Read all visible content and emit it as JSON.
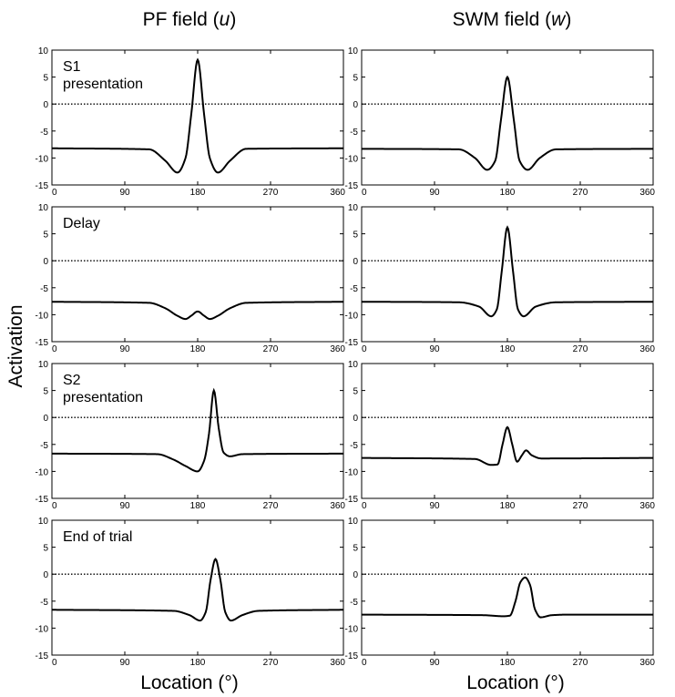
{
  "figure": {
    "ylabel": "Activation",
    "xlabel": "Location (°)",
    "columns": [
      {
        "title_main": "PF field (",
        "title_var": "u",
        "title_end": ")"
      },
      {
        "title_main": "SWM field (",
        "title_var": "w",
        "title_end": ")"
      }
    ]
  },
  "chart_data": [
    {
      "type": "line",
      "panel": "S1 presentation",
      "column": "PF field (u)",
      "label": [
        "S1",
        "presentation"
      ],
      "xlim": [
        0,
        360
      ],
      "ylim": [
        -15,
        10
      ],
      "xticks": [
        0,
        90,
        180,
        270,
        360
      ],
      "yticks": [
        10,
        5,
        0,
        -5,
        -10,
        -15
      ],
      "zero_line": "dotted",
      "grid": false,
      "series": [
        {
          "x": [
            0,
            120,
            140,
            155,
            165,
            172,
            180,
            188,
            195,
            205,
            220,
            240,
            360
          ],
          "y": [
            -8.2,
            -8.4,
            -10.5,
            -12.7,
            -10,
            -2,
            8.2,
            -2,
            -10,
            -12.7,
            -10.5,
            -8.3,
            -8.2
          ]
        }
      ]
    },
    {
      "type": "line",
      "panel": "S1 presentation",
      "column": "SWM field (w)",
      "label": [],
      "xlim": [
        0,
        360
      ],
      "ylim": [
        -15,
        10
      ],
      "xticks": [
        0,
        90,
        180,
        270,
        360
      ],
      "yticks": [
        10,
        5,
        0,
        -5,
        -10,
        -15
      ],
      "zero_line": "dotted",
      "grid": false,
      "series": [
        {
          "x": [
            0,
            120,
            140,
            155,
            165,
            172,
            180,
            188,
            195,
            205,
            220,
            240,
            360
          ],
          "y": [
            -8.3,
            -8.4,
            -10,
            -12.2,
            -10.5,
            -3,
            5,
            -3,
            -10.5,
            -12.2,
            -10,
            -8.4,
            -8.3
          ]
        }
      ]
    },
    {
      "type": "line",
      "panel": "Delay",
      "column": "PF field (u)",
      "label": [
        "Delay"
      ],
      "xlim": [
        0,
        360
      ],
      "ylim": [
        -15,
        10
      ],
      "xticks": [
        0,
        90,
        180,
        270,
        360
      ],
      "yticks": [
        10,
        5,
        0,
        -5,
        -10,
        -15
      ],
      "zero_line": "dotted",
      "grid": false,
      "series": [
        {
          "x": [
            0,
            120,
            140,
            155,
            165,
            172,
            180,
            188,
            195,
            205,
            220,
            240,
            360
          ],
          "y": [
            -7.6,
            -7.8,
            -8.8,
            -10.2,
            -10.8,
            -10.2,
            -9.4,
            -10.2,
            -10.8,
            -10.2,
            -8.8,
            -7.8,
            -7.6
          ]
        }
      ]
    },
    {
      "type": "line",
      "panel": "Delay",
      "column": "SWM field (w)",
      "label": [],
      "xlim": [
        0,
        360
      ],
      "ylim": [
        -15,
        10
      ],
      "xticks": [
        0,
        90,
        180,
        270,
        360
      ],
      "yticks": [
        10,
        5,
        0,
        -5,
        -10,
        -15
      ],
      "zero_line": "dotted",
      "grid": false,
      "series": [
        {
          "x": [
            0,
            120,
            145,
            160,
            167,
            173,
            180,
            187,
            193,
            200,
            215,
            240,
            360
          ],
          "y": [
            -7.6,
            -7.7,
            -8.5,
            -10.3,
            -9,
            -2,
            6.2,
            -2,
            -9,
            -10.3,
            -8.5,
            -7.7,
            -7.6
          ]
        }
      ]
    },
    {
      "type": "line",
      "panel": "S2 presentation",
      "column": "PF field (u)",
      "label": [
        "S2",
        "presentation"
      ],
      "xlim": [
        0,
        360
      ],
      "ylim": [
        -15,
        10
      ],
      "xticks": [
        0,
        90,
        180,
        270,
        360
      ],
      "yticks": [
        10,
        5,
        0,
        -5,
        -10,
        -15
      ],
      "zero_line": "dotted",
      "grid": false,
      "series": [
        {
          "x": [
            0,
            130,
            150,
            165,
            180,
            188,
            194,
            200,
            206,
            212,
            220,
            235,
            360
          ],
          "y": [
            -6.7,
            -6.8,
            -7.8,
            -9,
            -10,
            -8,
            -3,
            5,
            -2,
            -6.5,
            -7.2,
            -6.8,
            -6.7
          ]
        }
      ]
    },
    {
      "type": "line",
      "panel": "S2 presentation",
      "column": "SWM field (w)",
      "label": [],
      "xlim": [
        0,
        360
      ],
      "ylim": [
        -15,
        10
      ],
      "xticks": [
        0,
        90,
        180,
        270,
        360
      ],
      "yticks": [
        10,
        5,
        0,
        -5,
        -10,
        -15
      ],
      "zero_line": "dotted",
      "grid": false,
      "series": [
        {
          "x": [
            0,
            140,
            160,
            168,
            174,
            180,
            186,
            192,
            198,
            203,
            210,
            222,
            360
          ],
          "y": [
            -7.5,
            -7.7,
            -8.8,
            -8.7,
            -5,
            -1.8,
            -5,
            -8.2,
            -7,
            -6.1,
            -7,
            -7.6,
            -7.5
          ]
        }
      ]
    },
    {
      "type": "line",
      "panel": "End of trial",
      "column": "PF field (u)",
      "label": [
        "End of trial"
      ],
      "xlim": [
        0,
        360
      ],
      "ylim": [
        -15,
        10
      ],
      "xticks": [
        0,
        90,
        180,
        270,
        360
      ],
      "yticks": [
        10,
        5,
        0,
        -5,
        -10,
        -15
      ],
      "zero_line": "dotted",
      "grid": false,
      "series": [
        {
          "x": [
            0,
            150,
            170,
            183,
            190,
            196,
            202,
            208,
            214,
            221,
            235,
            255,
            360
          ],
          "y": [
            -6.6,
            -6.8,
            -7.6,
            -8.6,
            -7,
            -1,
            2.8,
            -1,
            -7,
            -8.6,
            -7.6,
            -6.8,
            -6.6
          ]
        }
      ]
    },
    {
      "type": "line",
      "panel": "End of trial",
      "column": "SWM field (w)",
      "label": [],
      "xlim": [
        0,
        360
      ],
      "ylim": [
        -15,
        10
      ],
      "xticks": [
        0,
        90,
        180,
        270,
        360
      ],
      "yticks": [
        10,
        5,
        0,
        -5,
        -10,
        -15
      ],
      "zero_line": "dotted",
      "grid": false,
      "series": [
        {
          "x": [
            0,
            150,
            175,
            183,
            190,
            196,
            202,
            208,
            214,
            221,
            235,
            255,
            360
          ],
          "y": [
            -7.5,
            -7.6,
            -7.8,
            -7.7,
            -5,
            -1.5,
            -0.6,
            -2,
            -6.5,
            -8,
            -7.6,
            -7.5,
            -7.5
          ]
        }
      ]
    }
  ]
}
